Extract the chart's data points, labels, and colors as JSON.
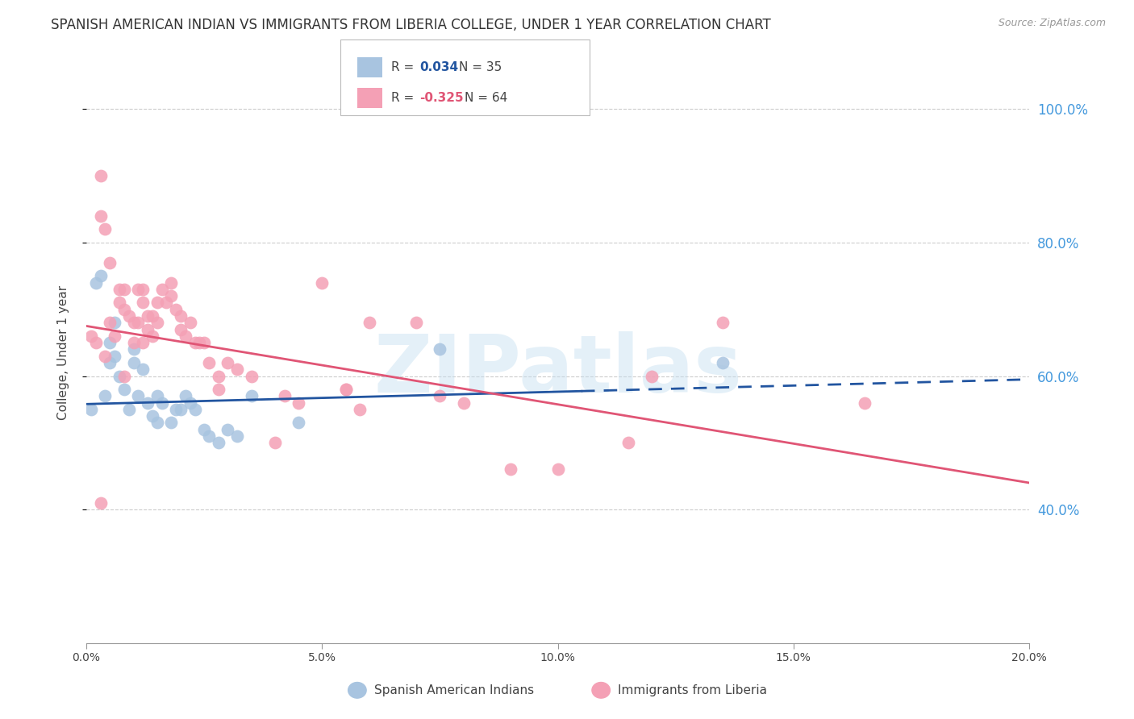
{
  "title": "SPANISH AMERICAN INDIAN VS IMMIGRANTS FROM LIBERIA COLLEGE, UNDER 1 YEAR CORRELATION CHART",
  "source": "Source: ZipAtlas.com",
  "ylabel": "College, Under 1 year",
  "watermark": "ZIPatlas",
  "blue_label": "Spanish American Indians",
  "pink_label": "Immigrants from Liberia",
  "blue_R": "0.034",
  "blue_N": "35",
  "pink_R": "-0.325",
  "pink_N": "64",
  "blue_color": "#a8c4e0",
  "pink_color": "#f4a0b5",
  "blue_line_color": "#2255a0",
  "pink_line_color": "#e05575",
  "right_axis_color": "#4499dd",
  "ylim": [
    20.0,
    107.0
  ],
  "xlim": [
    0.0,
    20.0
  ],
  "blue_scatter_x": [
    0.1,
    0.2,
    0.3,
    0.4,
    0.5,
    0.5,
    0.6,
    0.6,
    0.7,
    0.8,
    0.9,
    1.0,
    1.0,
    1.1,
    1.2,
    1.3,
    1.4,
    1.5,
    1.5,
    1.6,
    1.8,
    1.9,
    2.0,
    2.1,
    2.2,
    2.3,
    2.5,
    2.6,
    2.8,
    3.0,
    3.2,
    3.5,
    4.5,
    7.5,
    13.5
  ],
  "blue_scatter_y": [
    55,
    74,
    75,
    57,
    65,
    62,
    68,
    63,
    60,
    58,
    55,
    62,
    64,
    57,
    61,
    56,
    54,
    53,
    57,
    56,
    53,
    55,
    55,
    57,
    56,
    55,
    52,
    51,
    50,
    52,
    51,
    57,
    53,
    64,
    62
  ],
  "pink_scatter_x": [
    0.1,
    0.2,
    0.3,
    0.3,
    0.4,
    0.5,
    0.5,
    0.6,
    0.7,
    0.7,
    0.8,
    0.8,
    0.9,
    1.0,
    1.0,
    1.1,
    1.1,
    1.2,
    1.2,
    1.3,
    1.3,
    1.4,
    1.4,
    1.5,
    1.5,
    1.6,
    1.7,
    1.8,
    1.8,
    1.9,
    2.0,
    2.0,
    2.1,
    2.2,
    2.3,
    2.4,
    2.5,
    2.6,
    2.8,
    3.0,
    3.2,
    3.5,
    4.0,
    4.2,
    4.5,
    5.0,
    5.5,
    6.0,
    7.0,
    7.5,
    8.0,
    9.0,
    10.0,
    11.5,
    12.0,
    13.5,
    0.3,
    0.4,
    0.8,
    1.2,
    2.8,
    5.5,
    5.8,
    16.5
  ],
  "pink_scatter_y": [
    66,
    65,
    90,
    84,
    82,
    77,
    68,
    66,
    71,
    73,
    70,
    73,
    69,
    68,
    65,
    73,
    68,
    73,
    71,
    69,
    67,
    69,
    66,
    71,
    68,
    73,
    71,
    74,
    72,
    70,
    69,
    67,
    66,
    68,
    65,
    65,
    65,
    62,
    60,
    62,
    61,
    60,
    50,
    57,
    56,
    74,
    58,
    68,
    68,
    57,
    56,
    46,
    46,
    50,
    60,
    68,
    41,
    63,
    60,
    65,
    58,
    58,
    55,
    56
  ],
  "blue_trend_x0": 0.0,
  "blue_trend_y0": 55.8,
  "blue_trend_x1": 20.0,
  "blue_trend_y1": 59.5,
  "blue_solid_end": 10.5,
  "pink_trend_x0": 0.0,
  "pink_trend_y0": 67.5,
  "pink_trend_x1": 20.0,
  "pink_trend_y1": 44.0,
  "grid_color": "#cccccc",
  "bg_color": "#ffffff",
  "title_fontsize": 12,
  "axis_label_fontsize": 11,
  "tick_fontsize": 10,
  "legend_fontsize": 11
}
